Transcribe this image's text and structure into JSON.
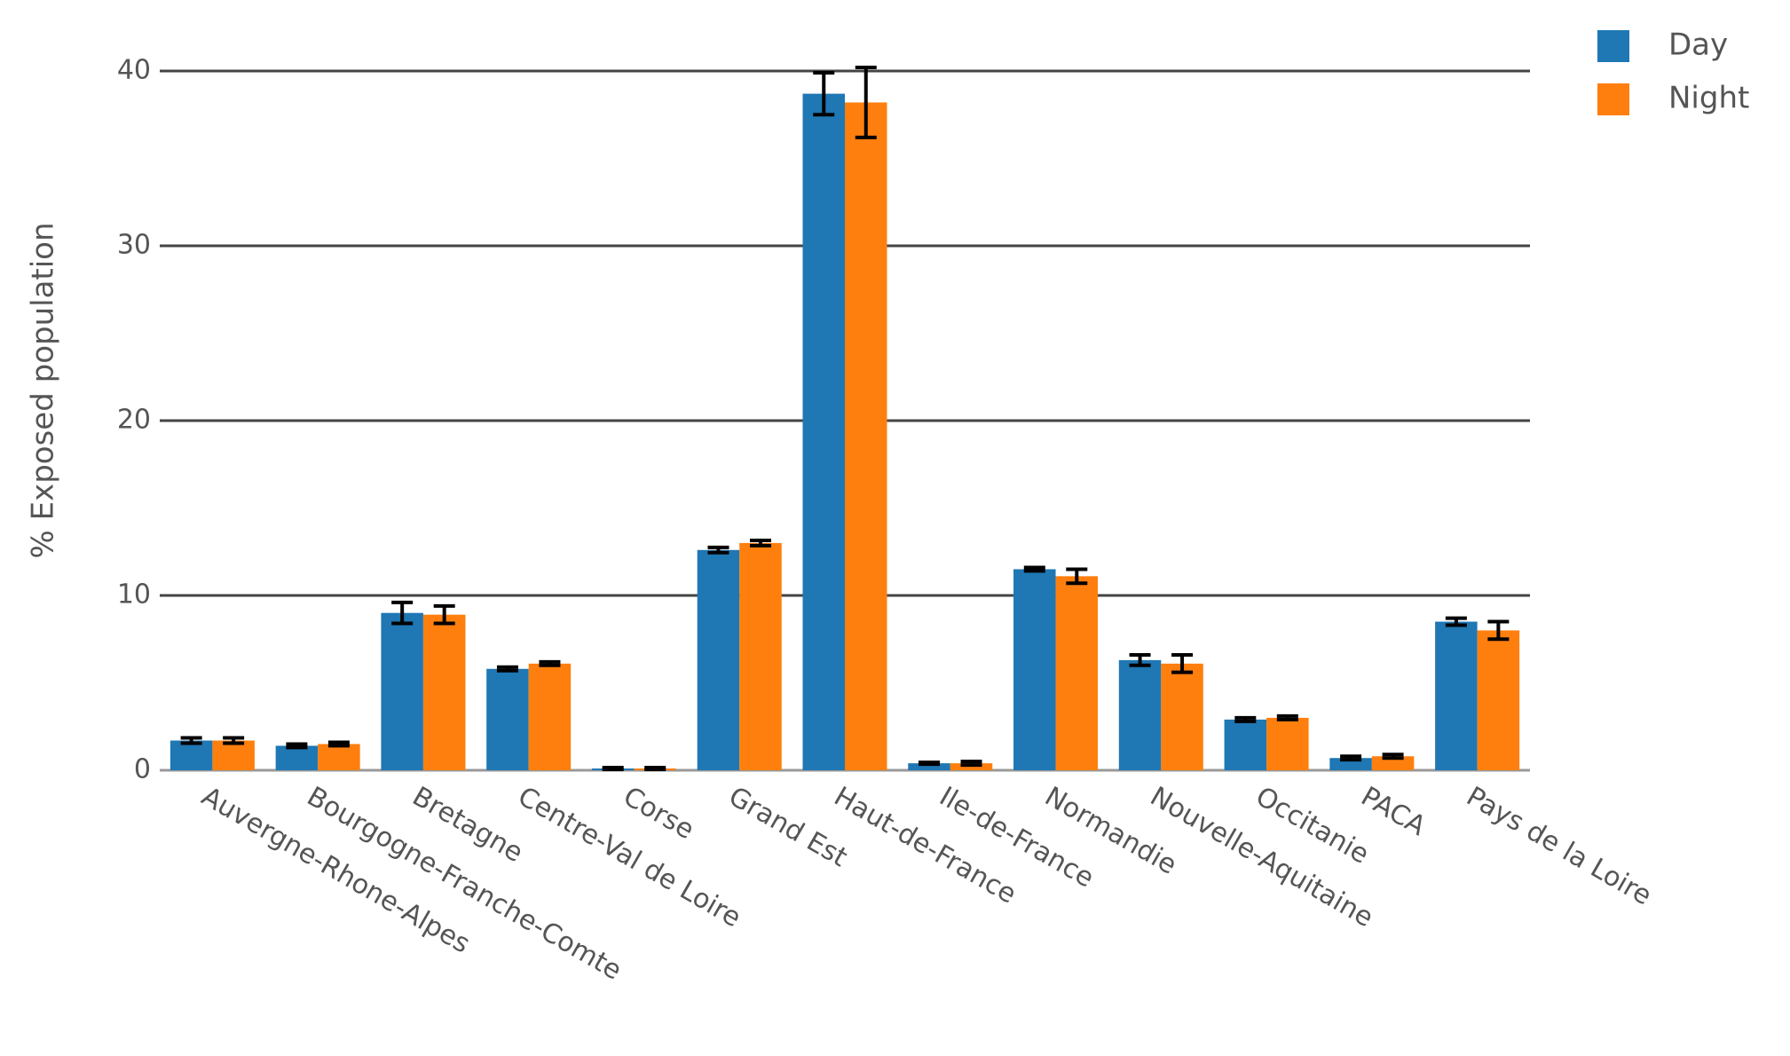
{
  "chart_data": {
    "type": "bar",
    "y_label": "% Exposed population",
    "categories": [
      "Auvergne-Rhone-Alpes",
      "Bourgogne-Franche-Comte",
      "Bretagne",
      "Centre-Val de Loire",
      "Corse",
      "Grand Est",
      "Haut-de-France",
      "Ile-de-France",
      "Normandie",
      "Nouvelle-Aquitaine",
      "Occitanie",
      "PACA",
      "Pays de la Loire"
    ],
    "series": [
      {
        "name": "Day",
        "color": "#1f77b4",
        "values": [
          1.7,
          1.4,
          9.0,
          5.8,
          0.1,
          12.6,
          38.7,
          0.4,
          11.5,
          6.3,
          2.9,
          0.7,
          8.5
        ],
        "errors": [
          0.15,
          0.1,
          0.6,
          0.1,
          0.05,
          0.15,
          1.2,
          0.05,
          0.1,
          0.3,
          0.1,
          0.1,
          0.2
        ]
      },
      {
        "name": "Night",
        "color": "#ff7f0e",
        "values": [
          1.7,
          1.5,
          8.9,
          6.1,
          0.1,
          13.0,
          38.2,
          0.4,
          11.1,
          6.1,
          3.0,
          0.8,
          8.0
        ],
        "errors": [
          0.15,
          0.1,
          0.5,
          0.1,
          0.05,
          0.15,
          2.0,
          0.1,
          0.4,
          0.5,
          0.1,
          0.1,
          0.5
        ]
      }
    ],
    "ylim": [
      0,
      40
    ],
    "yticks": [
      0,
      10,
      20,
      30,
      40
    ],
    "grid": true,
    "legend": "top-right"
  }
}
